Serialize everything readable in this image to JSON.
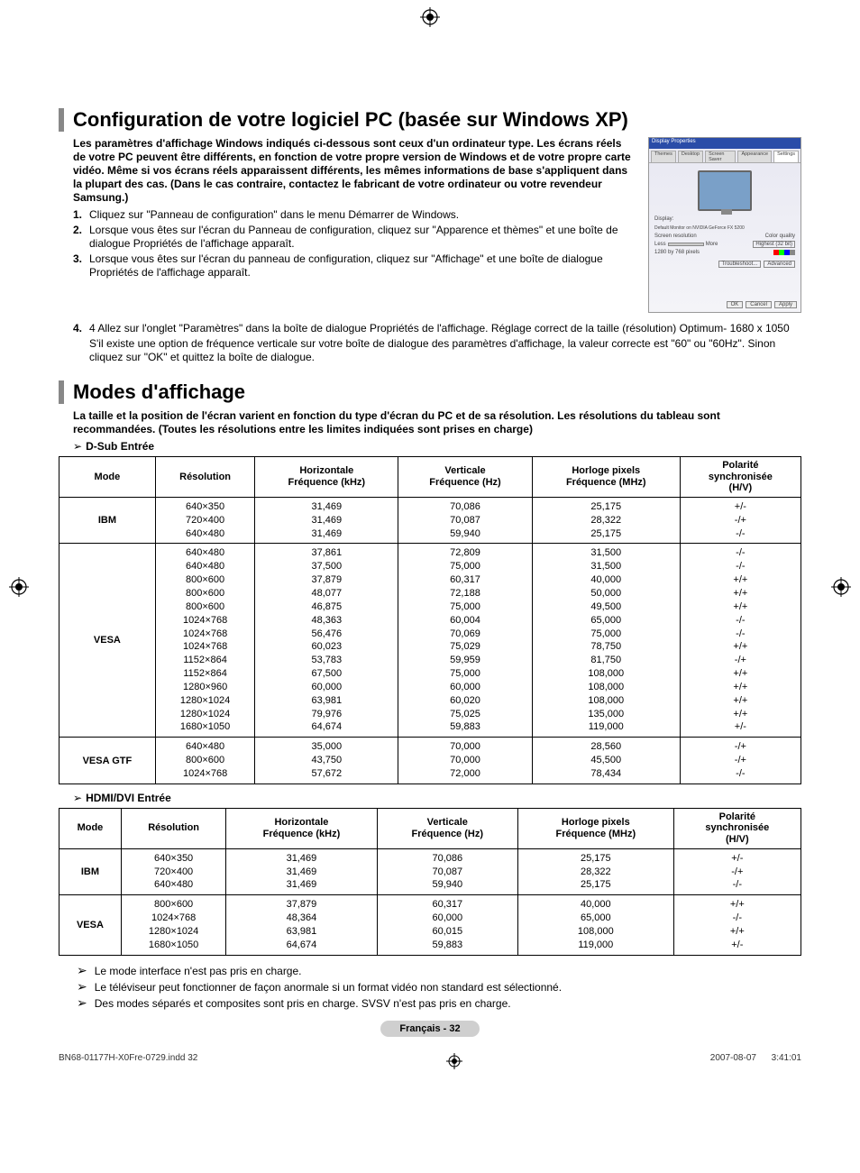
{
  "registration_marks": true,
  "section1": {
    "title": "Configuration de votre logiciel PC (basée sur Windows XP)",
    "intro_bold": "Les paramètres d'affichage Windows indiqués ci-dessous sont ceux d'un ordinateur type. Les écrans réels de votre PC peuvent être différents, en fonction de votre propre version de Windows et de votre propre carte vidéo. Même si vos écrans réels apparaissent différents, les mêmes informations de base s'appliquent dans la plupart des cas. (Dans le cas contraire, contactez le fabricant de votre ordinateur ou votre revendeur Samsung.)",
    "steps": [
      "Cliquez sur \"Panneau de configuration\" dans le menu Démarrer de Windows.",
      "Lorsque vous êtes sur l'écran du Panneau de configuration, cliquez sur \"Apparence et thèmes\" et une boîte de dialogue Propriétés de l'affichage apparaît.",
      "Lorsque vous êtes sur l'écran du panneau de configuration, cliquez sur \"Affichage\" et une boîte de dialogue Propriétés de l'affichage apparaît.",
      "4 Allez sur l'onglet \"Paramètres\" dans la boîte de dialogue Propriétés de l'affichage. Réglage correct de la taille (résolution) Optimum- 1680 x 1050"
    ],
    "step4_extra": "S'il existe une option de fréquence verticale sur votre boîte de dialogue des paramètres d'affichage, la valeur correcte est \"60\" ou \"60Hz\". Sinon cliquez sur \"OK\" et quittez la boîte de dialogue.",
    "dialog": {
      "title": "Display Properties",
      "tabs": [
        "Themes",
        "Desktop",
        "Screen Saver",
        "Appearance",
        "Settings"
      ],
      "active_tab": "Settings",
      "display_label": "Display:",
      "display_value": "Default Monitor on NVIDIA GeForce FX 5200",
      "res_label": "Screen resolution",
      "res_less": "Less",
      "res_more": "More",
      "res_value": "1280 by 768 pixels",
      "quality_label": "Color quality",
      "quality_value": "Highest (32 bit)",
      "btn_trouble": "Troubleshoot...",
      "btn_adv": "Advanced",
      "btn_ok": "OK",
      "btn_cancel": "Cancel",
      "btn_apply": "Apply"
    }
  },
  "section2": {
    "title": "Modes d'affichage",
    "intro_bold": "La taille et la position de l'écran varient en fonction du type d'écran du PC et de sa résolution. Les résolutions du tableau sont recommandées. (Toutes les résolutions entre les limites indiquées sont prises en charge)",
    "table_headers": [
      "Mode",
      "Résolution",
      "Horizontale Fréquence (kHz)",
      "Verticale Fréquence (Hz)",
      "Horloge pixels Fréquence (MHz)",
      "Polarité synchronisée (H/V)"
    ],
    "dsub_label": "D-Sub Entrée",
    "dsub_rows": [
      {
        "mode": "IBM",
        "res": [
          "640×350",
          "720×400",
          "640×480"
        ],
        "h": [
          "31,469",
          "31,469",
          "31,469"
        ],
        "v": [
          "70,086",
          "70,087",
          "59,940"
        ],
        "p": [
          "25,175",
          "28,322",
          "25,175"
        ],
        "s": [
          "+/-",
          "-/+",
          "-/-"
        ]
      },
      {
        "mode": "VESA",
        "res": [
          "640×480",
          "640×480",
          "800×600",
          "800×600",
          "800×600",
          "1024×768",
          "1024×768",
          "1024×768",
          "1152×864",
          "1152×864",
          "1280×960",
          "1280×1024",
          "1280×1024",
          "1680×1050"
        ],
        "h": [
          "37,861",
          "37,500",
          "37,879",
          "48,077",
          "46,875",
          "48,363",
          "56,476",
          "60,023",
          "53,783",
          "67,500",
          "60,000",
          "63,981",
          "79,976",
          "64,674"
        ],
        "v": [
          "72,809",
          "75,000",
          "60,317",
          "72,188",
          "75,000",
          "60,004",
          "70,069",
          "75,029",
          "59,959",
          "75,000",
          "60,000",
          "60,020",
          "75,025",
          "59,883"
        ],
        "p": [
          "31,500",
          "31,500",
          "40,000",
          "50,000",
          "49,500",
          "65,000",
          "75,000",
          "78,750",
          "81,750",
          "108,000",
          "108,000",
          "108,000",
          "135,000",
          "119,000"
        ],
        "s": [
          "-/-",
          "-/-",
          "+/+",
          "+/+",
          "+/+",
          "-/-",
          "-/-",
          "+/+",
          "-/+",
          "+/+",
          "+/+",
          "+/+",
          "+/+",
          "+/-"
        ]
      },
      {
        "mode": "VESA GTF",
        "res": [
          "640×480",
          "800×600",
          "1024×768"
        ],
        "h": [
          "35,000",
          "43,750",
          "57,672"
        ],
        "v": [
          "70,000",
          "70,000",
          "72,000"
        ],
        "p": [
          "28,560",
          "45,500",
          "78,434"
        ],
        "s": [
          "-/+",
          "-/+",
          "-/-"
        ]
      }
    ],
    "hdmi_label": "HDMI/DVI Entrée",
    "hdmi_rows": [
      {
        "mode": "IBM",
        "res": [
          "640×350",
          "720×400",
          "640×480"
        ],
        "h": [
          "31,469",
          "31,469",
          "31,469"
        ],
        "v": [
          "70,086",
          "70,087",
          "59,940"
        ],
        "p": [
          "25,175",
          "28,322",
          "25,175"
        ],
        "s": [
          "+/-",
          "-/+",
          "-/-"
        ]
      },
      {
        "mode": "VESA",
        "res": [
          "800×600",
          "1024×768",
          "1280×1024",
          "1680×1050"
        ],
        "h": [
          "37,879",
          "48,364",
          "63,981",
          "64,674"
        ],
        "v": [
          "60,317",
          "60,000",
          "60,015",
          "59,883"
        ],
        "p": [
          "40,000",
          "65,000",
          "108,000",
          "119,000"
        ],
        "s": [
          "+/+",
          "-/-",
          "+/+",
          "+/-"
        ]
      }
    ],
    "notes": [
      "Le mode interface n'est pas pris en charge.",
      "Le téléviseur peut fonctionner de façon anormale si un format vidéo non standard est sélectionné.",
      "Des modes séparés et composites sont pris en charge. SVSV n'est pas pris en charge."
    ]
  },
  "lang_badge": "Français - 32",
  "footer": {
    "left": "BN68-01177H-X0Fre-0729.indd   32",
    "right": "2007-08-07      3:41:01"
  },
  "colors": {
    "section_bar": "#888888",
    "badge_bg": "#cfcfcf",
    "dialog_title": "#2a4ca8"
  }
}
